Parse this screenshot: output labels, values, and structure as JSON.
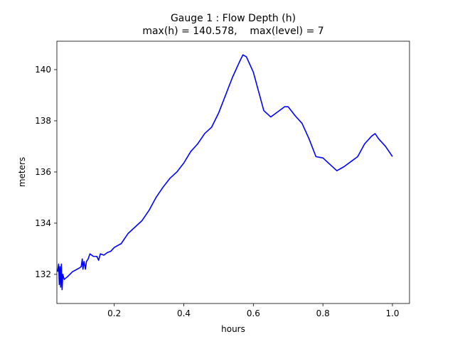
{
  "chart_data": {
    "type": "line",
    "title": "Gauge 1 : Flow Depth (h)",
    "subtitle": "max(h) = 140.578,    max(level) = 7",
    "x_label": "hours",
    "y_label": "meters",
    "xlim": [
      0.035,
      1.049
    ],
    "ylim": [
      130.86,
      141.11
    ],
    "xticks": [
      {
        "value": 0.2,
        "label": "0.2"
      },
      {
        "value": 0.4,
        "label": "0.4"
      },
      {
        "value": 0.6,
        "label": "0.6"
      },
      {
        "value": 0.8,
        "label": "0.8"
      },
      {
        "value": 1.0,
        "label": "1.0"
      }
    ],
    "yticks": [
      132,
      134,
      136,
      138,
      140
    ],
    "grid": false,
    "series": [
      {
        "color": "#0000ff",
        "x": [
          0.037,
          0.04,
          0.042,
          0.044,
          0.046,
          0.048,
          0.05,
          0.052,
          0.056,
          0.065,
          0.08,
          0.1,
          0.105,
          0.108,
          0.11,
          0.113,
          0.117,
          0.12,
          0.125,
          0.13,
          0.14,
          0.15,
          0.155,
          0.16,
          0.17,
          0.18,
          0.19,
          0.2,
          0.22,
          0.24,
          0.26,
          0.28,
          0.3,
          0.32,
          0.34,
          0.36,
          0.38,
          0.4,
          0.42,
          0.44,
          0.46,
          0.48,
          0.5,
          0.52,
          0.54,
          0.56,
          0.57,
          0.58,
          0.6,
          0.62,
          0.63,
          0.65,
          0.67,
          0.69,
          0.7,
          0.72,
          0.74,
          0.76,
          0.78,
          0.8,
          0.82,
          0.84,
          0.86,
          0.88,
          0.9,
          0.92,
          0.94,
          0.95,
          0.96,
          0.98,
          1.0
        ],
        "values": [
          132.1,
          132.4,
          131.6,
          132.3,
          131.5,
          132.4,
          131.4,
          132.0,
          131.8,
          131.9,
          132.1,
          132.25,
          132.3,
          132.6,
          132.2,
          132.5,
          132.2,
          132.5,
          132.6,
          132.8,
          132.7,
          132.7,
          132.55,
          132.8,
          132.75,
          132.85,
          132.9,
          133.05,
          133.2,
          133.6,
          133.85,
          134.1,
          134.5,
          135.0,
          135.4,
          135.75,
          136.0,
          136.35,
          136.8,
          137.1,
          137.5,
          137.75,
          138.3,
          139.0,
          139.7,
          140.3,
          140.578,
          140.5,
          139.9,
          138.9,
          138.4,
          138.15,
          138.35,
          138.55,
          138.55,
          138.2,
          137.9,
          137.3,
          136.6,
          136.55,
          136.3,
          136.05,
          136.2,
          136.4,
          136.6,
          137.1,
          137.4,
          137.5,
          137.3,
          137.0,
          136.6
        ]
      }
    ]
  }
}
